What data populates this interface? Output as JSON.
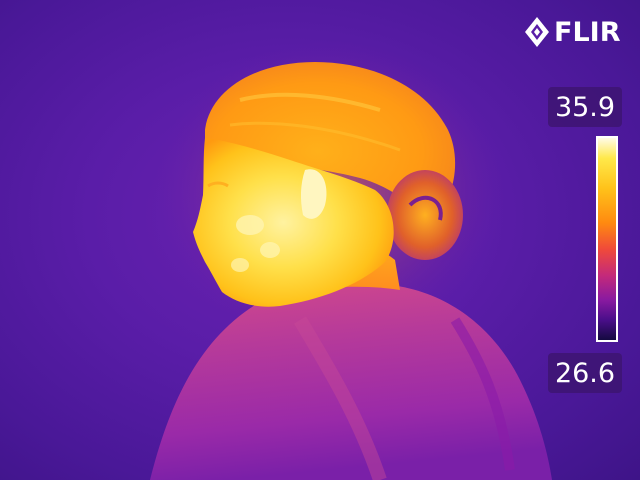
{
  "brand": {
    "name": "FLIR",
    "icon": "flir-diamond-logo-icon"
  },
  "temperature_scale": {
    "max": "35.9",
    "min": "26.6",
    "palette": [
      "#fffbe8",
      "#ffe94a",
      "#ffc21a",
      "#ff8a10",
      "#f04a3a",
      "#c42a7a",
      "#8a1aa0",
      "#4a0e8a",
      "#140a40"
    ]
  },
  "colors": {
    "background": "#4a1aa0",
    "hot": "#ffe94a",
    "warm": "#ff9a1a",
    "cool": "#7a1fa8"
  }
}
